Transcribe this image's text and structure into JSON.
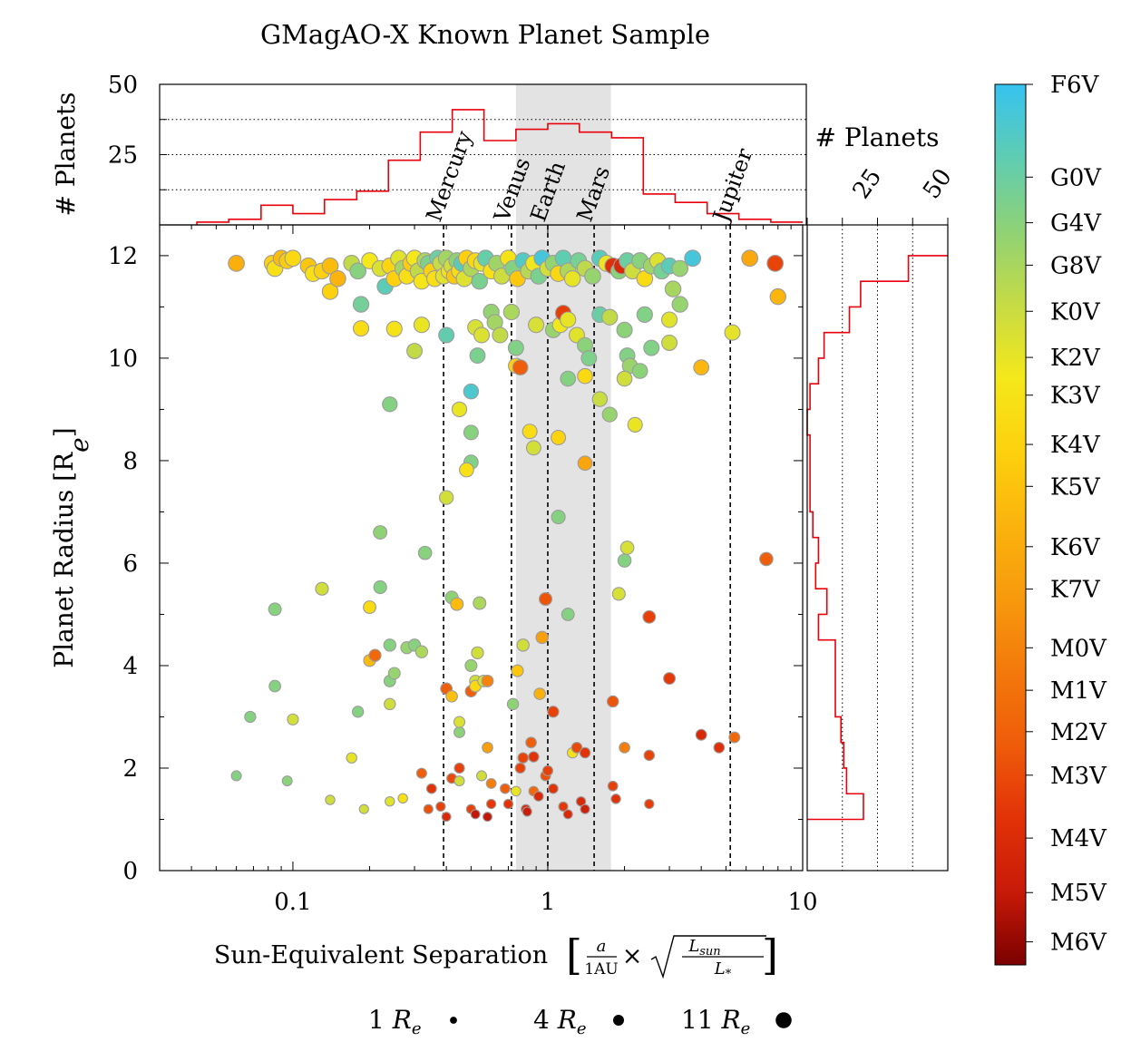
{
  "chart_data": {
    "type": "scatter",
    "title": "GMagAO-X Known Planet Sample",
    "xlabel": "Sun-Equivalent Separation",
    "xlabel_formula": {
      "bracket_open": "[",
      "frac_num": "a",
      "frac_den": "1AU",
      "times": "×",
      "sqrt_num": "L",
      "sqrt_num_sub": "sun",
      "sqrt_den": "L",
      "sqrt_den_sub": "*",
      "bracket_close": "]"
    },
    "ylabel": "Planet Radius [R",
    "ylabel_sub": "e",
    "ylabel_close": "]",
    "x_scale": "log",
    "xlim": [
      0.03,
      10
    ],
    "ylim": [
      0,
      12.6
    ],
    "x_ticks": [
      0.1,
      1,
      10
    ],
    "x_tick_labels": [
      "0.1",
      "1",
      "10"
    ],
    "y_ticks": [
      0,
      2,
      4,
      6,
      8,
      10,
      12
    ],
    "y_tick_labels": [
      "0",
      "2",
      "4",
      "6",
      "8",
      "10",
      "12"
    ],
    "habitable_zone": [
      0.75,
      1.77
    ],
    "solar_system": [
      {
        "name": "Mercury",
        "x": 0.39
      },
      {
        "name": "Venus",
        "x": 0.72
      },
      {
        "name": "Earth",
        "x": 1.0
      },
      {
        "name": "Mars",
        "x": 1.52
      },
      {
        "name": "Jupiter",
        "x": 5.2
      }
    ],
    "top_histogram": {
      "ylabel": "# Planets",
      "ylim": [
        0,
        50
      ],
      "y_ticks": [
        25,
        50
      ],
      "y_tick_labels": [
        "25",
        "50"
      ],
      "dotted_lines": [
        12.5,
        25,
        37.5
      ],
      "bin_edges": [
        0.042,
        0.056,
        0.075,
        0.1,
        0.133,
        0.178,
        0.237,
        0.316,
        0.422,
        0.562,
        0.75,
        1.0,
        1.33,
        1.78,
        2.37,
        3.16,
        4.22,
        5.62,
        7.5,
        10.0
      ],
      "counts": [
        1,
        2,
        7,
        4,
        9,
        12,
        23,
        33,
        41,
        30,
        34,
        36,
        33,
        31,
        11,
        8,
        4,
        2,
        1
      ]
    },
    "right_histogram": {
      "xlabel": "# Planets",
      "xlim": [
        0,
        50
      ],
      "x_ticks": [
        25,
        50
      ],
      "x_tick_labels": [
        "25",
        "50"
      ],
      "dotted_lines": [
        12.5,
        25,
        37.5
      ],
      "bin_edges": [
        1.0,
        1.5,
        2.0,
        2.5,
        3.0,
        3.5,
        4.0,
        4.5,
        5.0,
        5.5,
        6.0,
        6.5,
        7.0,
        7.5,
        8.0,
        8.5,
        9.0,
        9.5,
        10.0,
        10.5,
        11.0,
        11.5,
        12.0
      ],
      "counts": [
        20,
        14,
        13,
        12,
        10,
        10,
        10,
        4,
        7,
        3,
        4,
        2,
        1,
        1,
        1,
        0,
        1,
        4,
        6,
        15,
        19,
        36,
        50
      ]
    },
    "colorbar": {
      "labels": [
        "F6V",
        "G0V",
        "G4V",
        "G8V",
        "K0V",
        "K2V",
        "K3V",
        "K4V",
        "K5V",
        "K6V",
        "K7V",
        "M0V",
        "M1V",
        "M2V",
        "M3V",
        "M4V",
        "M5V",
        "M6V"
      ],
      "values": [
        0,
        1.77,
        2.64,
        3.45,
        4.33,
        5.21,
        5.93,
        6.87,
        7.67,
        8.82,
        9.63,
        10.75,
        11.56,
        12.35,
        13.18,
        14.38,
        15.42,
        16.36
      ],
      "range": [
        0,
        16.8
      ],
      "stops": [
        "#36c2f0",
        "#5fcdb2",
        "#8fd275",
        "#c6db45",
        "#f4e81a",
        "#fdd10d",
        "#fbb30d",
        "#f79a0d",
        "#f3790b",
        "#ef5c0a",
        "#e23208",
        "#c81a08",
        "#7a0000"
      ]
    },
    "size_legend": [
      {
        "label": "1 R",
        "sub": "e",
        "radius": 1
      },
      {
        "label": "4 R",
        "sub": "e",
        "radius": 4
      },
      {
        "label": "11 R",
        "sub": "e",
        "radius": 11
      }
    ],
    "points": [
      [
        0.06,
        11.85,
        8.6
      ],
      [
        0.083,
        11.85,
        7.0
      ],
      [
        0.085,
        11.75,
        6.0
      ],
      [
        0.09,
        11.95,
        8.0
      ],
      [
        0.095,
        11.9,
        7.3
      ],
      [
        0.1,
        11.95,
        6.5
      ],
      [
        0.115,
        11.8,
        7.5
      ],
      [
        0.12,
        11.65,
        6.1
      ],
      [
        0.13,
        11.7,
        7.0
      ],
      [
        0.14,
        11.3,
        7.0
      ],
      [
        0.14,
        11.8,
        8.0
      ],
      [
        0.15,
        11.55,
        8.4
      ],
      [
        0.17,
        11.85,
        4.1
      ],
      [
        0.18,
        11.7,
        2.6
      ],
      [
        0.185,
        11.05,
        2.0
      ],
      [
        0.2,
        11.9,
        5.6
      ],
      [
        0.22,
        11.75,
        4.8
      ],
      [
        0.23,
        11.4,
        1.3
      ],
      [
        0.24,
        11.8,
        6.7
      ],
      [
        0.25,
        11.55,
        7.0
      ],
      [
        0.26,
        11.95,
        5.0
      ],
      [
        0.27,
        11.75,
        3.4
      ],
      [
        0.28,
        11.6,
        6.2
      ],
      [
        0.29,
        11.85,
        7.2
      ],
      [
        0.3,
        11.95,
        5.6
      ],
      [
        0.31,
        11.7,
        4.1
      ],
      [
        0.32,
        11.5,
        5.8
      ],
      [
        0.33,
        11.9,
        3.6
      ],
      [
        0.34,
        11.85,
        2.3
      ],
      [
        0.35,
        11.7,
        7.0
      ],
      [
        0.36,
        11.55,
        6.2
      ],
      [
        0.37,
        11.95,
        1.8
      ],
      [
        0.38,
        11.85,
        4.2
      ],
      [
        0.39,
        11.6,
        5.0
      ],
      [
        0.4,
        11.95,
        3.3
      ],
      [
        0.41,
        11.7,
        6.0
      ],
      [
        0.42,
        11.8,
        4.6
      ],
      [
        0.43,
        11.6,
        7.4
      ],
      [
        0.44,
        11.9,
        2.8
      ],
      [
        0.45,
        11.7,
        6.3
      ],
      [
        0.46,
        11.85,
        1.2
      ],
      [
        0.47,
        11.55,
        4.9
      ],
      [
        0.48,
        11.95,
        7.1
      ],
      [
        0.5,
        11.75,
        3.6
      ],
      [
        0.52,
        11.9,
        6.5
      ],
      [
        0.54,
        11.5,
        2.2
      ],
      [
        0.55,
        11.85,
        5.2
      ],
      [
        0.57,
        11.95,
        1.6
      ],
      [
        0.6,
        11.7,
        6.0
      ],
      [
        0.63,
        11.85,
        3.2
      ],
      [
        0.66,
        11.6,
        4.4
      ],
      [
        0.7,
        11.95,
        5.9
      ],
      [
        0.73,
        11.75,
        2.5
      ],
      [
        0.76,
        11.55,
        7.4
      ],
      [
        0.8,
        11.9,
        1.0
      ],
      [
        0.84,
        11.7,
        3.8
      ],
      [
        0.88,
        11.85,
        5.5
      ],
      [
        0.92,
        11.6,
        2.2
      ],
      [
        0.95,
        11.95,
        0.5
      ],
      [
        1.0,
        11.75,
        4.6
      ],
      [
        1.05,
        11.85,
        2.9
      ],
      [
        1.1,
        11.65,
        6.6
      ],
      [
        1.15,
        11.95,
        1.4
      ],
      [
        1.2,
        11.7,
        3.6
      ],
      [
        1.25,
        11.55,
        5.2
      ],
      [
        1.32,
        11.9,
        2.1
      ],
      [
        1.4,
        11.75,
        4.0
      ],
      [
        1.5,
        11.6,
        3.0
      ],
      [
        1.6,
        11.95,
        1.2
      ],
      [
        1.7,
        11.85,
        5.4
      ],
      [
        1.8,
        11.8,
        14.2
      ],
      [
        1.9,
        11.7,
        2.7
      ],
      [
        1.95,
        11.8,
        14.6
      ],
      [
        2.05,
        11.9,
        1.8
      ],
      [
        2.15,
        11.7,
        4.4
      ],
      [
        2.3,
        11.9,
        2.6
      ],
      [
        2.4,
        11.55,
        6.4
      ],
      [
        2.55,
        11.8,
        3.2
      ],
      [
        2.7,
        11.9,
        4.9
      ],
      [
        2.8,
        11.7,
        2.1
      ],
      [
        3.0,
        11.8,
        1.3
      ],
      [
        3.1,
        11.35,
        3.4
      ],
      [
        3.3,
        11.75,
        3.0
      ],
      [
        3.7,
        11.95,
        0.5
      ],
      [
        6.2,
        11.95,
        9.0
      ],
      [
        7.8,
        11.85,
        13.4
      ],
      [
        8.0,
        11.2,
        8.3
      ],
      [
        0.185,
        10.58,
        6.3
      ],
      [
        0.25,
        10.57,
        5.9
      ],
      [
        0.3,
        10.14,
        4.1
      ],
      [
        0.32,
        10.65,
        5.3
      ],
      [
        0.4,
        10.45,
        1.5
      ],
      [
        0.52,
        10.6,
        4.7
      ],
      [
        0.55,
        10.45,
        4.8
      ],
      [
        0.53,
        10.05,
        2.2
      ],
      [
        0.6,
        10.9,
        2.9
      ],
      [
        0.62,
        10.7,
        3.3
      ],
      [
        0.65,
        10.45,
        4.1
      ],
      [
        0.75,
        10.2,
        2.4
      ],
      [
        0.72,
        10.9,
        3.5
      ],
      [
        0.75,
        9.85,
        7.0
      ],
      [
        0.78,
        9.82,
        12.5
      ],
      [
        0.9,
        10.65,
        4.7
      ],
      [
        1.05,
        10.55,
        3.0
      ],
      [
        1.12,
        10.65,
        5.5
      ],
      [
        1.15,
        10.88,
        13.6
      ],
      [
        1.2,
        10.75,
        5.2
      ],
      [
        1.3,
        10.45,
        5.0
      ],
      [
        1.4,
        10.25,
        2.7
      ],
      [
        1.45,
        10.0,
        2.3
      ],
      [
        1.6,
        10.85,
        1.7
      ],
      [
        1.75,
        10.8,
        4.1
      ],
      [
        2.0,
        10.55,
        2.7
      ],
      [
        2.05,
        10.05,
        2.4
      ],
      [
        2.1,
        9.85,
        3.1
      ],
      [
        2.3,
        9.75,
        2.7
      ],
      [
        2.4,
        10.85,
        2.4
      ],
      [
        2.55,
        10.2,
        2.4
      ],
      [
        3.0,
        10.3,
        4.5
      ],
      [
        3.0,
        10.75,
        5.0
      ],
      [
        3.3,
        11.05,
        3.0
      ],
      [
        4.0,
        9.82,
        8.2
      ],
      [
        5.3,
        10.5,
        5.1
      ],
      [
        0.24,
        9.1,
        2.5
      ],
      [
        0.45,
        9.0,
        5.3
      ],
      [
        0.5,
        9.35,
        0.8
      ],
      [
        0.5,
        8.55,
        2.6
      ],
      [
        0.5,
        7.97,
        2.4
      ],
      [
        0.48,
        7.82,
        6.1
      ],
      [
        0.4,
        7.28,
        4.6
      ],
      [
        0.85,
        8.57,
        6.3
      ],
      [
        0.88,
        8.25,
        4.6
      ],
      [
        1.1,
        8.45,
        6.9
      ],
      [
        1.2,
        9.6,
        2.5
      ],
      [
        1.4,
        9.65,
        6.5
      ],
      [
        1.6,
        9.2,
        4.3
      ],
      [
        1.75,
        8.9,
        3.0
      ],
      [
        2.0,
        9.6,
        4.5
      ],
      [
        2.2,
        8.7,
        5.3
      ],
      [
        1.4,
        7.95,
        9.2
      ],
      [
        0.22,
        6.6,
        2.8
      ],
      [
        0.33,
        6.2,
        2.6
      ],
      [
        0.13,
        5.5,
        4.5
      ],
      [
        0.22,
        5.53,
        2.5
      ],
      [
        0.085,
        5.1,
        2.6
      ],
      [
        0.2,
        5.14,
        6.4
      ],
      [
        0.42,
        5.33,
        2.8
      ],
      [
        0.44,
        5.2,
        8.0
      ],
      [
        0.54,
        5.22,
        3.5
      ],
      [
        0.98,
        5.3,
        12.8
      ],
      [
        1.1,
        6.9,
        2.5
      ],
      [
        1.2,
        5.0,
        2.5
      ],
      [
        1.9,
        5.4,
        4.7
      ],
      [
        2.0,
        6.05,
        2.5
      ],
      [
        2.05,
        6.3,
        4.7
      ],
      [
        2.5,
        4.95,
        13.5
      ],
      [
        7.2,
        6.08,
        12.5
      ],
      [
        0.18,
        3.1,
        2.5
      ],
      [
        0.2,
        4.1,
        8.0
      ],
      [
        0.21,
        4.2,
        12.0
      ],
      [
        0.24,
        4.4,
        2.5
      ],
      [
        0.24,
        3.7,
        2.6
      ],
      [
        0.25,
        3.85,
        3.0
      ],
      [
        0.24,
        3.25,
        4.5
      ],
      [
        0.28,
        4.35,
        3.0
      ],
      [
        0.3,
        4.4,
        2.6
      ],
      [
        0.32,
        4.27,
        3.5
      ],
      [
        0.4,
        3.55,
        12.5
      ],
      [
        0.42,
        3.4,
        7.8
      ],
      [
        0.45,
        2.7,
        2.7
      ],
      [
        0.45,
        2.9,
        4.8
      ],
      [
        0.5,
        4.0,
        3.0
      ],
      [
        0.52,
        3.7,
        4.5
      ],
      [
        0.53,
        4.25,
        4.5
      ],
      [
        0.5,
        3.5,
        12.5
      ],
      [
        0.52,
        3.6,
        6.5
      ],
      [
        0.56,
        3.7,
        4.8
      ],
      [
        0.58,
        3.7,
        10.8
      ],
      [
        0.73,
        3.25,
        2.8
      ],
      [
        0.76,
        3.9,
        7.5
      ],
      [
        0.8,
        4.4,
        4.5
      ],
      [
        0.95,
        4.55,
        9.5
      ],
      [
        0.93,
        3.45,
        8.5
      ],
      [
        1.05,
        3.1,
        13.5
      ],
      [
        1.8,
        3.3,
        12.8
      ],
      [
        3.0,
        3.75,
        13.8
      ],
      [
        0.06,
        1.85,
        2.5
      ],
      [
        0.068,
        3.0,
        2.5
      ],
      [
        0.085,
        3.6,
        2.5
      ],
      [
        0.095,
        1.75,
        2.7
      ],
      [
        0.1,
        2.95,
        4.6
      ],
      [
        0.14,
        1.38,
        4.5
      ],
      [
        0.17,
        2.2,
        5.2
      ],
      [
        0.19,
        1.2,
        4.6
      ],
      [
        0.24,
        1.35,
        5.0
      ],
      [
        0.27,
        1.41,
        6.0
      ],
      [
        0.32,
        1.9,
        12.5
      ],
      [
        0.35,
        1.6,
        14.0
      ],
      [
        0.34,
        1.2,
        13.0
      ],
      [
        0.38,
        1.25,
        13.5
      ],
      [
        0.4,
        1.05,
        14.5
      ],
      [
        0.42,
        1.8,
        13.2
      ],
      [
        0.45,
        1.75,
        4.5
      ],
      [
        0.45,
        2.0,
        13.5
      ],
      [
        0.5,
        1.2,
        13.5
      ],
      [
        0.52,
        1.1,
        15.5
      ],
      [
        0.55,
        1.85,
        4.5
      ],
      [
        0.58,
        2.4,
        9.5
      ],
      [
        0.6,
        1.7,
        11.0
      ],
      [
        0.6,
        1.3,
        13.8
      ],
      [
        0.58,
        1.05,
        15.5
      ],
      [
        0.68,
        1.6,
        12.5
      ],
      [
        0.7,
        1.3,
        14.0
      ],
      [
        0.75,
        1.55,
        5.3
      ],
      [
        0.78,
        2.0,
        13.5
      ],
      [
        0.8,
        2.2,
        13.4
      ],
      [
        0.86,
        2.5,
        12.5
      ],
      [
        0.88,
        2.22,
        14.0
      ],
      [
        0.82,
        1.2,
        14.5
      ],
      [
        0.83,
        1.15,
        15.3
      ],
      [
        0.88,
        1.55,
        12.0
      ],
      [
        0.92,
        1.45,
        14.5
      ],
      [
        0.98,
        1.85,
        13.0
      ],
      [
        1.0,
        1.95,
        13.5
      ],
      [
        1.05,
        1.6,
        14.0
      ],
      [
        1.15,
        1.25,
        13.8
      ],
      [
        1.2,
        1.1,
        14.5
      ],
      [
        1.25,
        2.3,
        6.0
      ],
      [
        1.3,
        2.4,
        13.2
      ],
      [
        1.35,
        1.35,
        14.5
      ],
      [
        1.4,
        2.3,
        14.0
      ],
      [
        1.4,
        1.2,
        15.0
      ],
      [
        1.8,
        1.65,
        13.5
      ],
      [
        1.85,
        1.4,
        14.0
      ],
      [
        2.0,
        2.4,
        11.0
      ],
      [
        2.5,
        2.25,
        13.4
      ],
      [
        2.5,
        1.3,
        13.6
      ],
      [
        4.0,
        2.65,
        14.6
      ],
      [
        4.7,
        2.4,
        14.2
      ],
      [
        5.4,
        2.6,
        12.0
      ]
    ]
  }
}
